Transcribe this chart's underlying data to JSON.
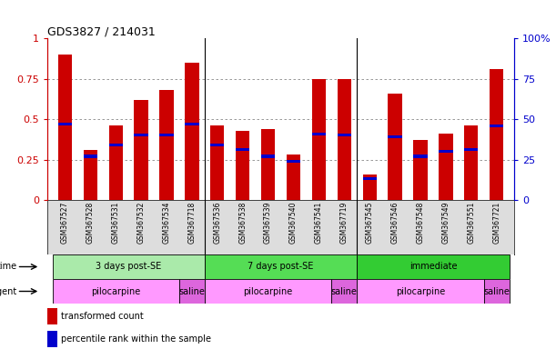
{
  "title": "GDS3827 / 214031",
  "samples": [
    "GSM367527",
    "GSM367528",
    "GSM367531",
    "GSM367532",
    "GSM367534",
    "GSM367718",
    "GSM367536",
    "GSM367538",
    "GSM367539",
    "GSM367540",
    "GSM367541",
    "GSM367719",
    "GSM367545",
    "GSM367546",
    "GSM367548",
    "GSM367549",
    "GSM367551",
    "GSM367721"
  ],
  "red_values": [
    0.9,
    0.31,
    0.46,
    0.62,
    0.68,
    0.85,
    0.46,
    0.43,
    0.44,
    0.28,
    0.75,
    0.75,
    0.16,
    0.66,
    0.37,
    0.41,
    0.46,
    0.81
  ],
  "blue_values": [
    0.47,
    0.27,
    0.34,
    0.4,
    0.4,
    0.47,
    0.34,
    0.31,
    0.27,
    0.24,
    0.41,
    0.4,
    0.13,
    0.39,
    0.27,
    0.3,
    0.31,
    0.46
  ],
  "time_groups": [
    {
      "label": "3 days post-SE",
      "start": 0,
      "end": 6,
      "color": "#aaeaaa"
    },
    {
      "label": "7 days post-SE",
      "start": 6,
      "end": 12,
      "color": "#55dd55"
    },
    {
      "label": "immediate",
      "start": 12,
      "end": 18,
      "color": "#33cc33"
    }
  ],
  "agent_groups": [
    {
      "label": "pilocarpine",
      "start": 0,
      "end": 5,
      "color": "#ff99ff"
    },
    {
      "label": "saline",
      "start": 5,
      "end": 6,
      "color": "#dd66dd"
    },
    {
      "label": "pilocarpine",
      "start": 6,
      "end": 11,
      "color": "#ff99ff"
    },
    {
      "label": "saline",
      "start": 11,
      "end": 12,
      "color": "#dd66dd"
    },
    {
      "label": "pilocarpine",
      "start": 12,
      "end": 17,
      "color": "#ff99ff"
    },
    {
      "label": "saline",
      "start": 17,
      "end": 18,
      "color": "#dd66dd"
    }
  ],
  "bar_width": 0.55,
  "ylim": [
    0,
    1.0
  ],
  "y2lim": [
    0,
    100
  ],
  "yticks": [
    0,
    0.25,
    0.5,
    0.75,
    1.0
  ],
  "ytick_labels": [
    "0",
    "0.25",
    "0.5",
    "0.75",
    "1"
  ],
  "y2ticks": [
    0,
    25,
    50,
    75,
    100
  ],
  "y2tick_labels": [
    "0",
    "25",
    "50",
    "75",
    "100%"
  ],
  "red_color": "#cc0000",
  "blue_color": "#0000cc",
  "grid_color": "#888888",
  "background_color": "#ffffff",
  "xtick_bg": "#dddddd",
  "group_dividers": [
    6,
    12
  ]
}
